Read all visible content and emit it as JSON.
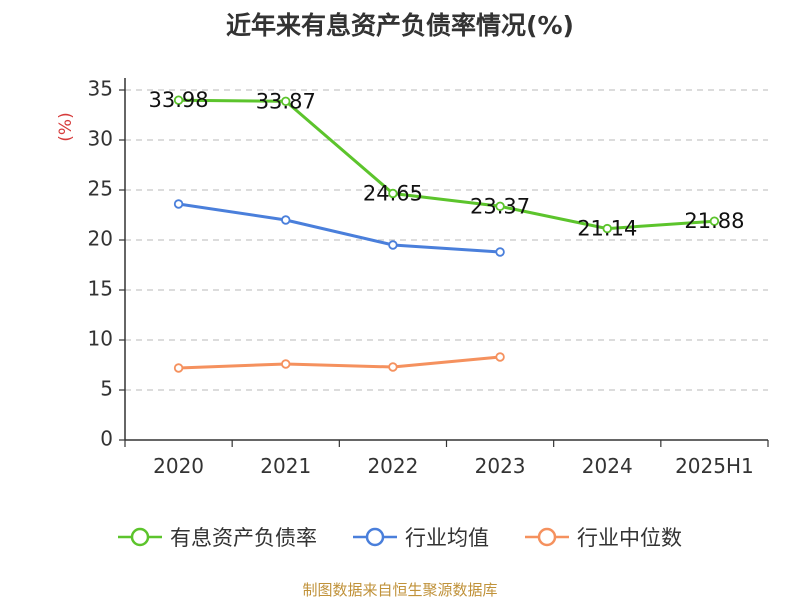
{
  "title": "近年来有息资产负债率情况(%)",
  "source": "制图数据来自恒生聚源数据库",
  "chart_data": {
    "type": "line",
    "categories": [
      "2020",
      "2021",
      "2022",
      "2023",
      "2024",
      "2025H1"
    ],
    "ylabel": "(%)",
    "ylim": [
      0,
      35
    ],
    "yticks": [
      0,
      5,
      10,
      15,
      20,
      25,
      30,
      35
    ],
    "grid": true,
    "legend_position": "bottom",
    "series": [
      {
        "name": "有息资产负债率",
        "color": "#5cc42c",
        "values": [
          33.98,
          33.87,
          24.65,
          23.37,
          21.14,
          21.88
        ],
        "labels": [
          "33.98",
          "33.87",
          "24.65",
          "23.37",
          "21.14",
          "21.88"
        ]
      },
      {
        "name": "行业均值",
        "color": "#4a7fdb",
        "values": [
          23.6,
          22.0,
          19.5,
          18.8,
          null,
          null
        ]
      },
      {
        "name": "行业中位数",
        "color": "#f5915e",
        "values": [
          7.2,
          7.6,
          7.3,
          8.3,
          null,
          null
        ]
      }
    ]
  }
}
